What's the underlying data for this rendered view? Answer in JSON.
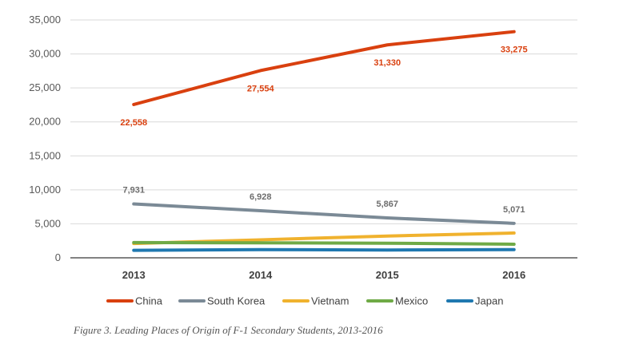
{
  "chart_data": {
    "type": "line",
    "title": "",
    "xlabel": "",
    "ylabel": "",
    "categories": [
      "2013",
      "2014",
      "2015",
      "2016"
    ],
    "ylim": [
      0,
      35000
    ],
    "yticks": [
      0,
      5000,
      10000,
      15000,
      20000,
      25000,
      30000,
      35000
    ],
    "ytick_labels": [
      "0",
      "5,000",
      "10,000",
      "15,000",
      "20,000",
      "25,000",
      "30,000",
      "35,000"
    ],
    "grid": "horizontal",
    "legend_position": "bottom",
    "series": [
      {
        "name": "China",
        "color": "#d9400f",
        "values": [
          22558,
          27554,
          31330,
          33275
        ],
        "labels": [
          "22,558",
          "27,554",
          "31,330",
          "33,275"
        ],
        "label_position": "below"
      },
      {
        "name": "South Korea",
        "color": "#7b8a96",
        "values": [
          7931,
          6928,
          5867,
          5071
        ],
        "labels": [
          "7,931",
          "6,928",
          "5,867",
          "5,071"
        ],
        "label_position": "above"
      },
      {
        "name": "Vietnam",
        "color": "#f0b22e",
        "values": [
          2100,
          2650,
          3200,
          3650
        ]
      },
      {
        "name": "Mexico",
        "color": "#6faa46",
        "values": [
          2250,
          2200,
          2150,
          2000
        ]
      },
      {
        "name": "Japan",
        "color": "#1f78b0",
        "values": [
          1100,
          1200,
          1150,
          1200
        ]
      }
    ]
  },
  "caption": "Figure 3. Leading Places of Origin of F-1 Secondary Students, 2013-2016"
}
